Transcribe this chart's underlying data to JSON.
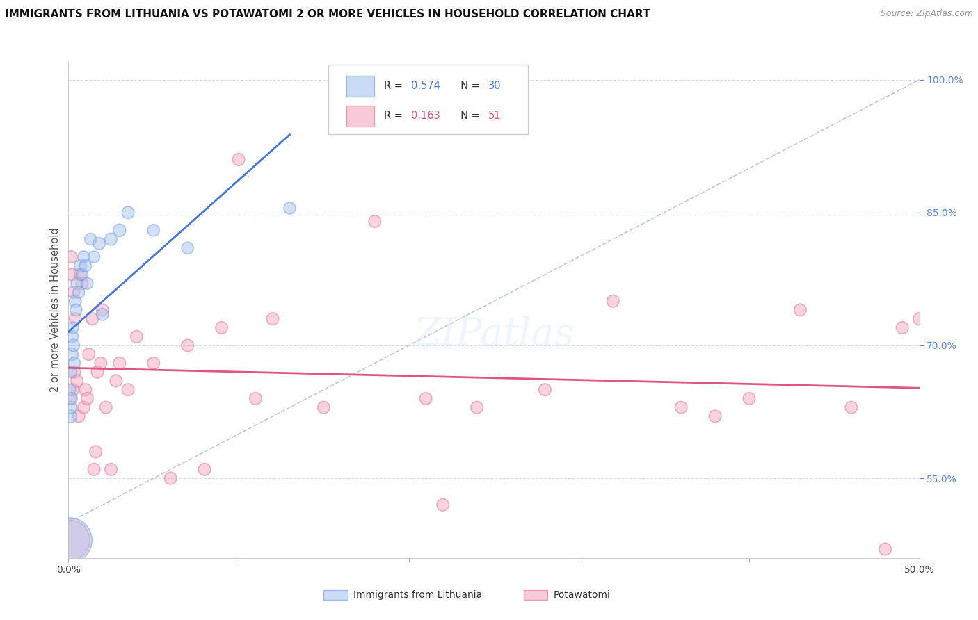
{
  "title": "IMMIGRANTS FROM LITHUANIA VS POTAWATOMI 2 OR MORE VEHICLES IN HOUSEHOLD CORRELATION CHART",
  "source": "Source: ZipAtlas.com",
  "ylabel": "2 or more Vehicles in Household",
  "xmin": 0.0,
  "xmax": 50.0,
  "ymin": 46.0,
  "ymax": 102.0,
  "r1": "0.574",
  "n1": "30",
  "r2": "0.163",
  "n2": "51",
  "color_blue_fill": "#A8C4F0",
  "color_blue_edge": "#7099E0",
  "color_blue_line": "#4477DD",
  "color_pink_fill": "#F5A8C0",
  "color_pink_edge": "#E07090",
  "color_pink_line": "#E05580",
  "color_dashed": "#C0C8D8",
  "grid_color": "#D8DCE8",
  "bg_color": "#FFFFFF",
  "ytick_vals": [
    55.0,
    70.0,
    85.0,
    100.0
  ],
  "blue_x": [
    0.05,
    0.08,
    0.1,
    0.12,
    0.15,
    0.18,
    0.2,
    0.22,
    0.25,
    0.3,
    0.35,
    0.4,
    0.45,
    0.5,
    0.6,
    0.7,
    0.8,
    0.9,
    1.0,
    1.1,
    1.3,
    1.5,
    1.8,
    2.0,
    2.5,
    3.0,
    3.5,
    5.0,
    7.0,
    13.0
  ],
  "blue_y": [
    48.0,
    65.0,
    62.0,
    63.0,
    67.0,
    64.0,
    69.0,
    71.0,
    72.0,
    70.0,
    68.0,
    75.0,
    74.0,
    77.0,
    76.0,
    79.0,
    78.0,
    80.0,
    79.0,
    77.0,
    82.0,
    80.0,
    81.5,
    73.5,
    82.0,
    83.0,
    85.0,
    83.0,
    81.0,
    85.5
  ],
  "blue_sizes": [
    2200,
    150,
    180,
    160,
    150,
    150,
    170,
    160,
    150,
    160,
    150,
    160,
    150,
    150,
    150,
    160,
    150,
    150,
    150,
    150,
    150,
    150,
    160,
    155,
    160,
    170,
    160,
    150,
    150,
    150
  ],
  "pink_x": [
    0.05,
    0.1,
    0.15,
    0.2,
    0.25,
    0.3,
    0.35,
    0.4,
    0.5,
    0.6,
    0.7,
    0.8,
    0.9,
    1.0,
    1.1,
    1.2,
    1.4,
    1.5,
    1.6,
    1.7,
    1.9,
    2.0,
    2.2,
    2.5,
    2.8,
    3.0,
    3.5,
    4.0,
    5.0,
    6.0,
    7.0,
    8.0,
    9.0,
    10.0,
    11.0,
    12.0,
    15.0,
    18.0,
    21.0,
    24.0,
    28.0,
    32.0,
    36.0,
    40.0,
    43.0,
    46.0,
    48.0,
    49.0,
    50.0,
    22.0,
    38.0
  ],
  "pink_y": [
    48.0,
    64.0,
    80.0,
    78.0,
    65.0,
    76.0,
    67.0,
    73.0,
    66.0,
    62.0,
    78.0,
    77.0,
    63.0,
    65.0,
    64.0,
    69.0,
    73.0,
    56.0,
    58.0,
    67.0,
    68.0,
    74.0,
    63.0,
    56.0,
    66.0,
    68.0,
    65.0,
    71.0,
    68.0,
    55.0,
    70.0,
    56.0,
    72.0,
    91.0,
    64.0,
    73.0,
    63.0,
    84.0,
    64.0,
    63.0,
    65.0,
    75.0,
    63.0,
    64.0,
    74.0,
    63.0,
    47.0,
    72.0,
    73.0,
    52.0,
    62.0
  ],
  "pink_sizes": [
    1800,
    160,
    160,
    160,
    160,
    160,
    160,
    160,
    160,
    160,
    160,
    160,
    160,
    160,
    160,
    160,
    160,
    160,
    160,
    160,
    160,
    160,
    160,
    160,
    160,
    160,
    160,
    160,
    160,
    160,
    160,
    160,
    160,
    160,
    160,
    160,
    160,
    160,
    160,
    160,
    160,
    160,
    160,
    160,
    160,
    160,
    160,
    160,
    160,
    160,
    160
  ]
}
